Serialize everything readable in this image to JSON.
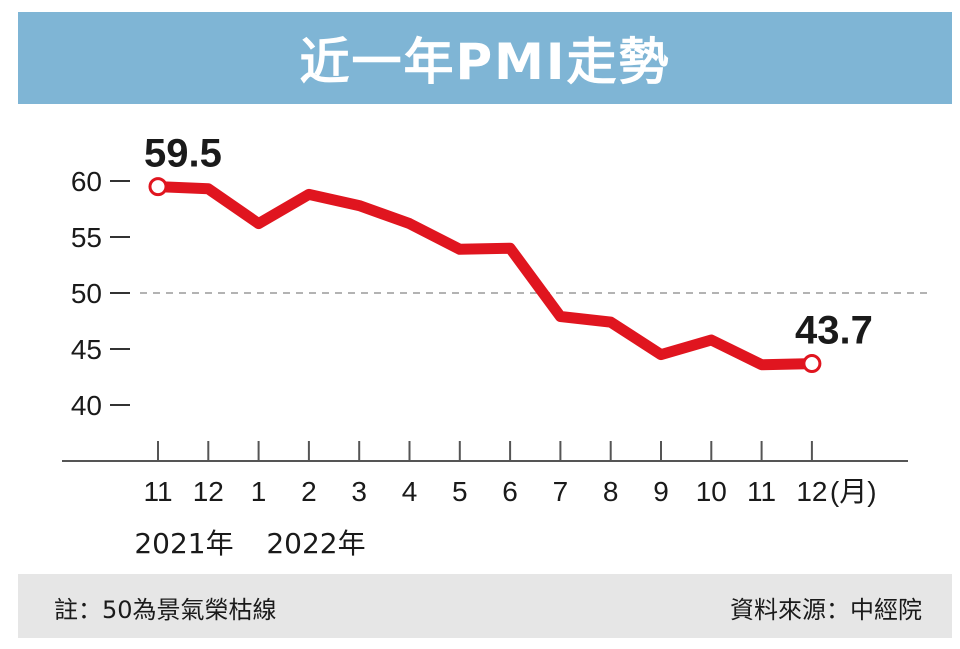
{
  "title": "近一年PMI走勢",
  "footer": {
    "note": "註：50為景氣榮枯線",
    "source": "資料來源：中經院"
  },
  "colors": {
    "title_bg": "#7fb5d5",
    "line": "#e0151f",
    "footer_bg": "#e6e6e6"
  },
  "chart_data": {
    "type": "line",
    "categories": [
      "11",
      "12",
      "1",
      "2",
      "3",
      "4",
      "5",
      "6",
      "7",
      "8",
      "9",
      "10",
      "11",
      "12"
    ],
    "x_unit": "(月)",
    "year_labels": [
      "2021年",
      "2022年"
    ],
    "values": [
      59.5,
      59.3,
      56.2,
      58.8,
      57.8,
      56.2,
      53.9,
      54.0,
      47.9,
      47.4,
      44.5,
      45.8,
      43.6,
      43.7
    ],
    "yticks": [
      40,
      45,
      50,
      55,
      60
    ],
    "ylim": [
      38,
      62
    ],
    "reference_line": 50,
    "annotations": [
      {
        "index": 0,
        "label": "59.5"
      },
      {
        "index": 13,
        "label": "43.7"
      }
    ]
  }
}
